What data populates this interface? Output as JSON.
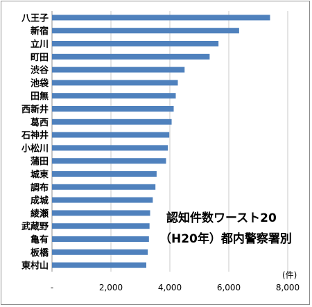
{
  "chart_data": {
    "type": "bar",
    "orientation": "horizontal",
    "title_lines": [
      "認知件数ワースト20",
      "（H20年）都内警察署別"
    ],
    "unit_label": "(件)",
    "categories": [
      "八王子",
      "新宿",
      "立川",
      "町田",
      "渋谷",
      "池袋",
      "田無",
      "西新井",
      "葛西",
      "石神井",
      "小松川",
      "蒲田",
      "城東",
      "調布",
      "成城",
      "綾瀬",
      "武蔵野",
      "亀有",
      "板橋",
      "東村山"
    ],
    "values": [
      7400,
      6350,
      5650,
      5350,
      4500,
      4270,
      4200,
      4130,
      4060,
      3980,
      3930,
      3870,
      3550,
      3510,
      3420,
      3330,
      3310,
      3290,
      3250,
      3200
    ],
    "xlim": [
      0,
      8000
    ],
    "x_ticks": [
      0,
      2000,
      4000,
      6000,
      8000
    ],
    "x_tick_labels": [
      "-",
      "2,000",
      "4,000",
      "6,000",
      "8,000"
    ],
    "grid": "vertical",
    "bar_color": "#4f81bd"
  }
}
